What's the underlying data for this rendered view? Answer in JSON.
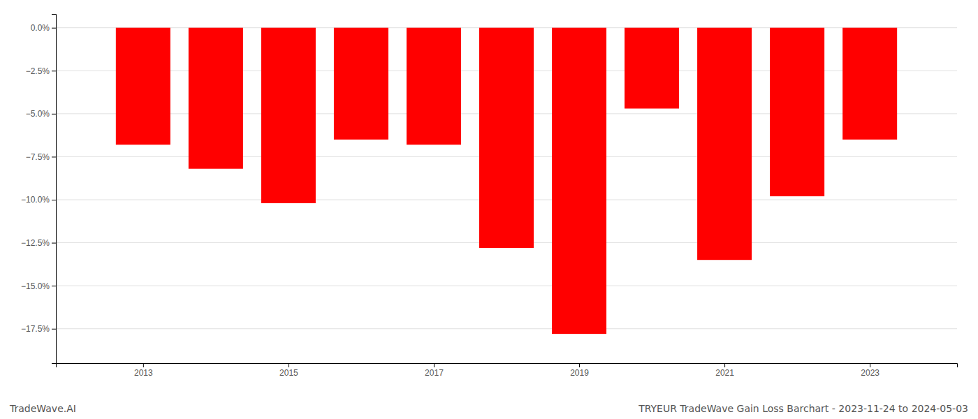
{
  "chart_data": {
    "type": "bar",
    "title": "TRYEUR TradeWave Gain Loss Barchart - 2023-11-24 to 2024-05-03",
    "annotations": [
      "TradeWave.AI"
    ],
    "x": [
      2013,
      2014,
      2015,
      2016,
      2017,
      2018,
      2019,
      2020,
      2021,
      2022,
      2023
    ],
    "values": [
      -0.068,
      -0.082,
      -0.102,
      -0.065,
      -0.068,
      -0.128,
      -0.178,
      -0.047,
      -0.135,
      -0.098,
      -0.065
    ],
    "color": "#ff0000",
    "xlim": [
      2011.8,
      2024.2
    ],
    "xticks": [
      2013,
      2015,
      2017,
      2019,
      2021,
      2023
    ],
    "ylim": [
      -0.195,
      0.008
    ],
    "yticks": [
      {
        "value": 0.0,
        "label": "0.0%"
      },
      {
        "value": -0.025,
        "label": "−2.5%"
      },
      {
        "value": -0.05,
        "label": "−5.0%"
      },
      {
        "value": -0.075,
        "label": "−7.5%"
      },
      {
        "value": -0.1,
        "label": "−10.0%"
      },
      {
        "value": -0.125,
        "label": "−12.5%"
      },
      {
        "value": -0.15,
        "label": "−15.0%"
      },
      {
        "value": -0.175,
        "label": "−17.5%"
      }
    ],
    "grid": true
  }
}
